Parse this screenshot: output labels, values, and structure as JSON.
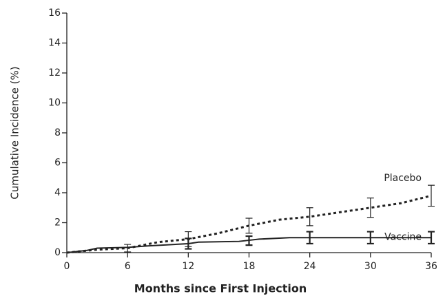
{
  "chart_data": {
    "type": "line",
    "xlabel": "Months since First Injection",
    "ylabel": "Cumulative Incidence (%)",
    "xlim": [
      0,
      36
    ],
    "xticks": [
      0,
      6,
      12,
      18,
      24,
      30,
      36
    ],
    "ylim": [
      0,
      16
    ],
    "yticks": [
      0,
      2,
      4,
      6,
      8,
      10,
      12,
      14,
      16
    ],
    "series": [
      {
        "name": "Placebo",
        "color": "#222222",
        "dash": true,
        "x": [
          0,
          3,
          6,
          9,
          12,
          15,
          18,
          21,
          24,
          27,
          30,
          33,
          36
        ],
        "values": [
          0,
          0.2,
          0.3,
          0.7,
          0.9,
          1.3,
          1.8,
          2.2,
          2.4,
          2.7,
          3.0,
          3.3,
          3.8
        ],
        "error_bars": {
          "x": [
            6,
            12,
            18,
            24,
            30,
            36
          ],
          "values": [
            0.3,
            0.9,
            1.8,
            2.4,
            3.0,
            3.8
          ],
          "errors": [
            0.25,
            0.5,
            0.5,
            0.6,
            0.65,
            0.7
          ]
        }
      },
      {
        "name": "Vaccine",
        "color": "#222222",
        "dash": false,
        "x": [
          0,
          2,
          3,
          6,
          8,
          12,
          13,
          17,
          19,
          22,
          36
        ],
        "values": [
          0,
          0.15,
          0.3,
          0.35,
          0.45,
          0.6,
          0.7,
          0.75,
          0.9,
          1.0,
          1.0
        ],
        "error_bars": {
          "x": [
            12,
            18,
            24,
            30,
            36
          ],
          "values": [
            0.6,
            0.8,
            1.0,
            1.0,
            1.0
          ],
          "errors": [
            0.35,
            0.3,
            0.4,
            0.4,
            0.4
          ]
        }
      }
    ]
  }
}
